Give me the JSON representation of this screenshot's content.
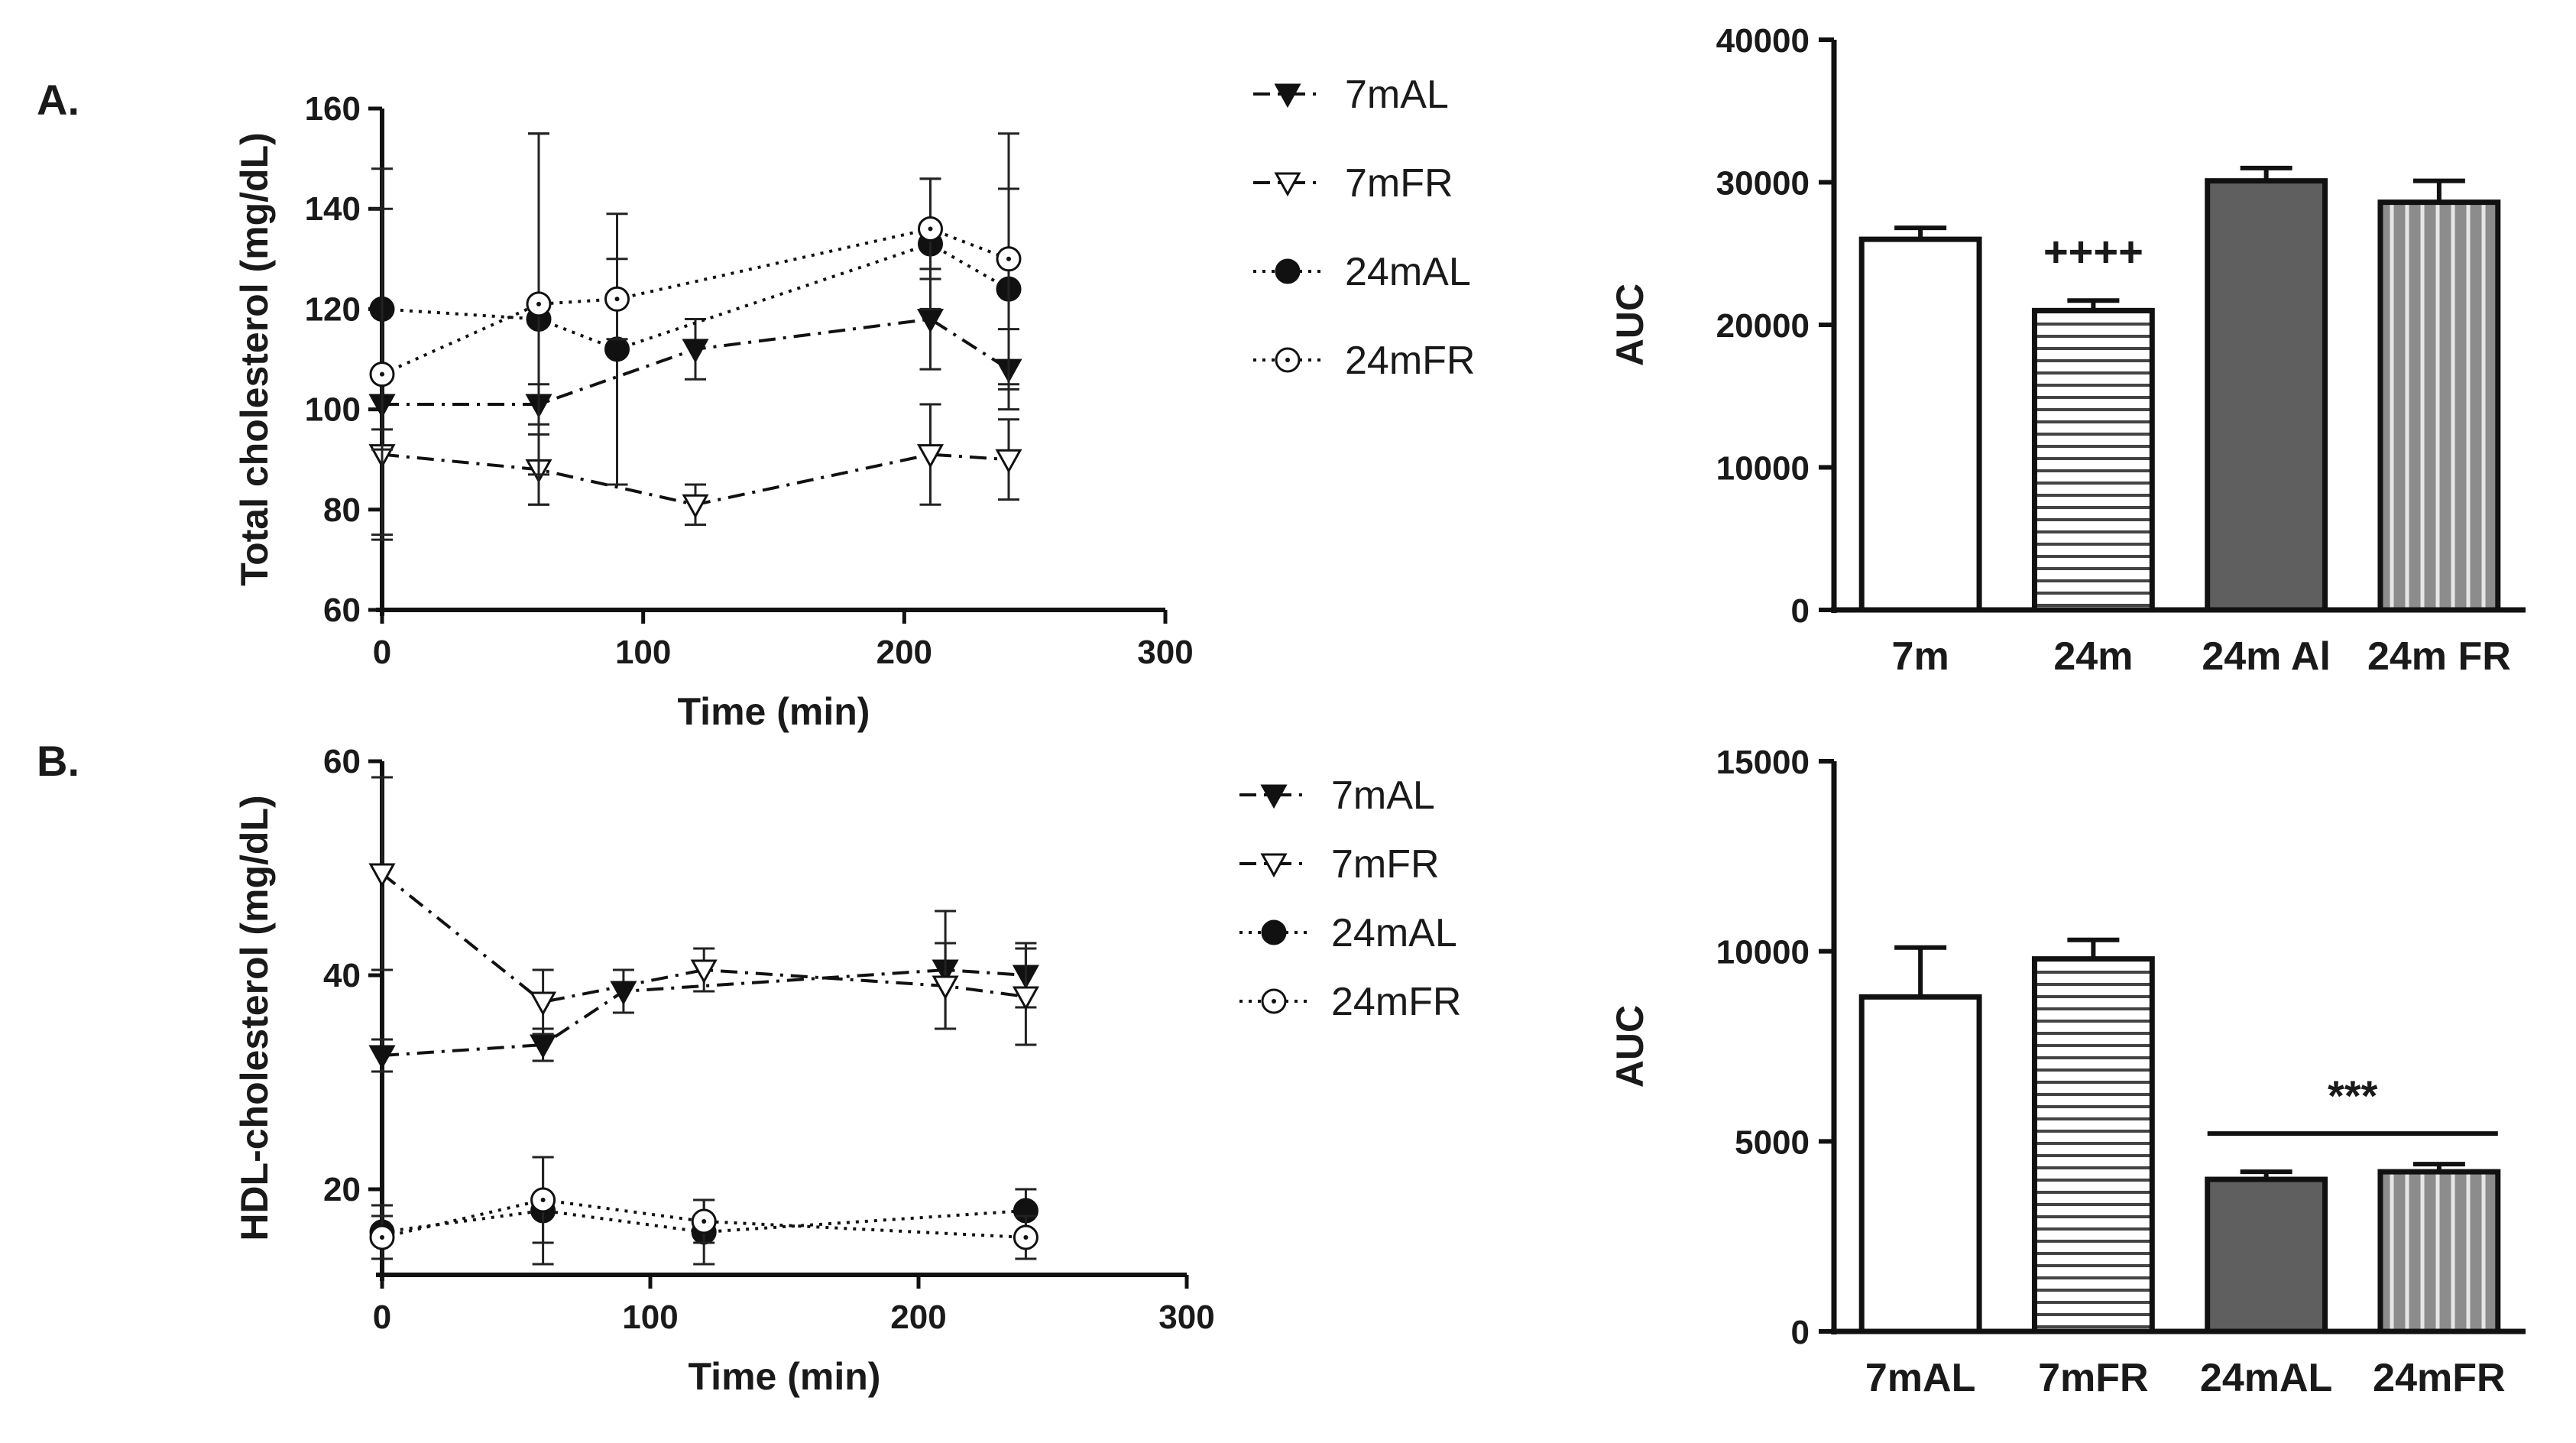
{
  "figure": {
    "panel_labels": [
      "A.",
      "B."
    ]
  },
  "chart_data": [
    {
      "id": "A-line",
      "type": "line",
      "panel": "A.",
      "xlabel": "Time (min)",
      "ylabel": "Total cholesterol (mg/dL)",
      "xlim": [
        0,
        300
      ],
      "ylim": [
        60,
        160
      ],
      "xticks": [
        0,
        100,
        200,
        300
      ],
      "yticks": [
        60,
        80,
        100,
        120,
        140,
        160
      ],
      "legend": "right",
      "series": [
        {
          "name": "7mAL",
          "marker": "triangle-down-filled",
          "dash": "dashdot",
          "x": [
            0,
            60,
            120,
            210,
            240
          ],
          "y": [
            101,
            101,
            112,
            118,
            108
          ],
          "err": [
            5,
            4,
            6,
            10,
            8
          ]
        },
        {
          "name": "7mFR",
          "marker": "triangle-down-open",
          "dash": "dashdot",
          "x": [
            0,
            60,
            120,
            210,
            240
          ],
          "y": [
            91,
            88,
            81,
            91,
            90
          ],
          "err": [
            16,
            7,
            4,
            10,
            8
          ]
        },
        {
          "name": "24mAL",
          "marker": "circle-filled",
          "dash": "dotted",
          "x": [
            0,
            60,
            90,
            210,
            240
          ],
          "y": [
            120,
            118,
            112,
            133,
            124
          ],
          "err": [
            28,
            37,
            27,
            13,
            20
          ]
        },
        {
          "name": "24mFR",
          "marker": "circle-open",
          "dash": "dotted",
          "x": [
            0,
            60,
            90,
            210,
            240
          ],
          "y": [
            107,
            121,
            122,
            136,
            130
          ],
          "err": [
            33,
            34,
            8,
            10,
            25
          ]
        }
      ]
    },
    {
      "id": "A-bar",
      "type": "bar",
      "panel": "A.",
      "ylabel": "AUC",
      "ylim": [
        0,
        40000
      ],
      "yticks": [
        0,
        10000,
        20000,
        30000,
        40000
      ],
      "categories": [
        "7m",
        "24m",
        "24m Al",
        "24m FR"
      ],
      "values": [
        26000,
        21000,
        30100,
        28600
      ],
      "errors": [
        800,
        700,
        900,
        1500
      ],
      "fills": [
        "white",
        "hstripe",
        "dark",
        "vstripe"
      ],
      "annotations": [
        {
          "text": "++++",
          "category": "24m"
        }
      ]
    },
    {
      "id": "B-line",
      "type": "line",
      "panel": "B.",
      "xlabel": "Time (min)",
      "ylabel": "HDL-cholesterol (mg/dL)",
      "xlim": [
        0,
        300
      ],
      "ylim": [
        12,
        60
      ],
      "xticks": [
        0,
        100,
        200,
        300
      ],
      "yticks": [
        20,
        40,
        60
      ],
      "legend": "right",
      "series": [
        {
          "name": "7mAL",
          "marker": "triangle-down-filled",
          "dash": "dashdot",
          "x": [
            0,
            60,
            90,
            210,
            240
          ],
          "y": [
            32.5,
            33.5,
            38.5,
            40.5,
            40
          ],
          "err": [
            1.5,
            1.5,
            2,
            5.5,
            3
          ]
        },
        {
          "name": "7mFR",
          "marker": "triangle-down-open",
          "dash": "dashdot",
          "x": [
            0,
            60,
            120,
            210,
            240
          ],
          "y": [
            49.5,
            37.5,
            40.5,
            39,
            38
          ],
          "err": [
            9,
            3,
            2,
            4,
            4.5
          ]
        },
        {
          "name": "24mAL",
          "marker": "circle-filled",
          "dash": "dotted",
          "x": [
            0,
            60,
            120,
            240
          ],
          "y": [
            16,
            18,
            16,
            18
          ],
          "err": [
            2.5,
            5,
            3,
            2
          ]
        },
        {
          "name": "24mFR",
          "marker": "circle-open",
          "dash": "dotted",
          "x": [
            0,
            60,
            120,
            240
          ],
          "y": [
            15.5,
            19,
            17,
            15.5
          ],
          "err": [
            2,
            4,
            2,
            2
          ]
        }
      ]
    },
    {
      "id": "B-bar",
      "type": "bar",
      "panel": "B.",
      "ylabel": "AUC",
      "ylim": [
        0,
        15000
      ],
      "yticks": [
        0,
        5000,
        10000,
        15000
      ],
      "categories": [
        "7mAL",
        "7mFR",
        "24mAL",
        "24mFR"
      ],
      "values": [
        8800,
        9800,
        4000,
        4200
      ],
      "errors": [
        1300,
        500,
        200,
        200
      ],
      "fills": [
        "white",
        "hstripe",
        "dark",
        "vstripe"
      ],
      "annotations": [
        {
          "text": "***",
          "from": "24mAL",
          "to": "24mFR"
        }
      ]
    }
  ]
}
